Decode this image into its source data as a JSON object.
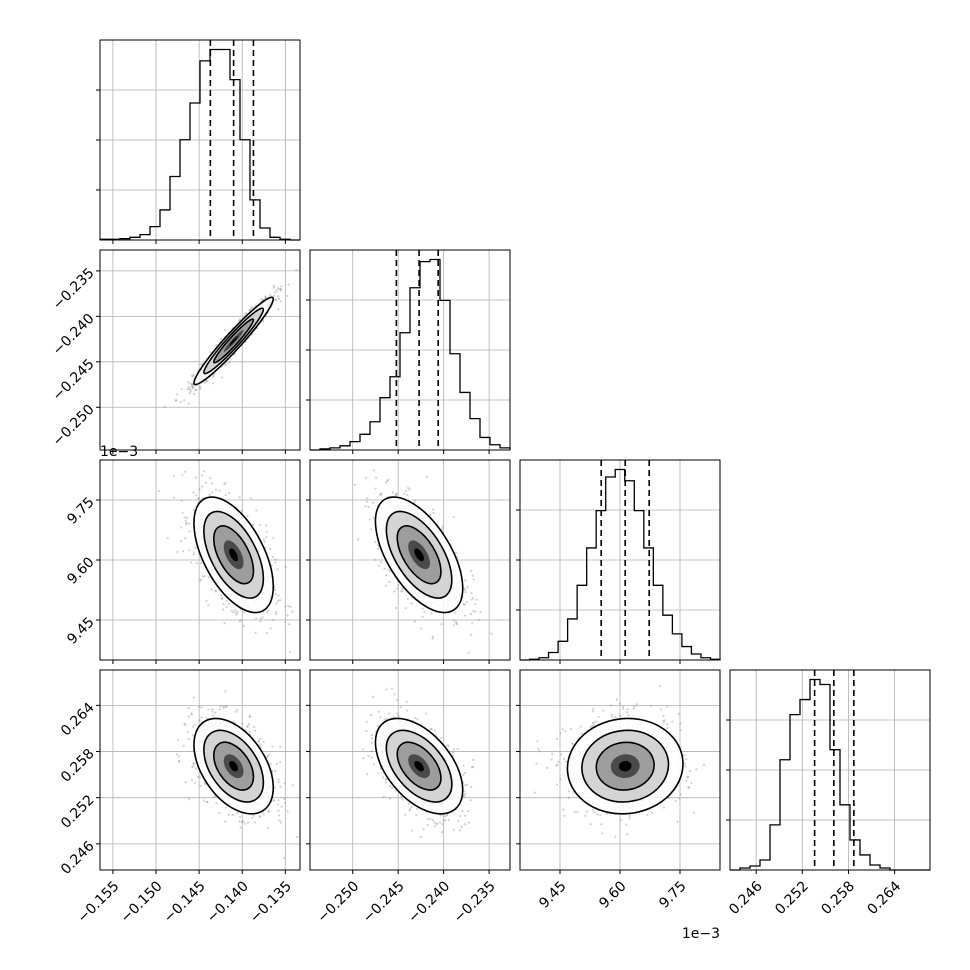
{
  "chart_data": {
    "type": "corner",
    "grid": true,
    "parameters": [
      {
        "ticks": [
          -0.155,
          -0.15,
          -0.145,
          -0.14,
          -0.135
        ],
        "tick_labels": [
          "−0.155",
          "−0.150",
          "−0.145",
          "−0.140",
          "−0.135"
        ],
        "range": [
          -0.1565,
          -0.1333
        ],
        "quantiles": [
          -0.1437,
          -0.141,
          -0.1387
        ],
        "offset_label": ""
      },
      {
        "ticks": [
          -0.25,
          -0.245,
          -0.24,
          -0.235
        ],
        "tick_labels": [
          "−0.250",
          "−0.245",
          "−0.240",
          "−0.235"
        ],
        "range": [
          -0.2547,
          -0.2327
        ],
        "quantiles": [
          -0.2452,
          -0.2427,
          -0.2406
        ],
        "offset_label": ""
      },
      {
        "ticks": [
          9.45,
          9.6,
          9.75
        ],
        "tick_labels": [
          "9.45",
          "9.60",
          "9.75"
        ],
        "range": [
          9.35,
          9.85
        ],
        "quantiles": [
          9.553,
          9.613,
          9.673
        ],
        "offset_label": "1e−3"
      },
      {
        "ticks": [
          0.246,
          0.252,
          0.258,
          0.264
        ],
        "tick_labels": [
          "0.246",
          "0.252",
          "0.258",
          "0.264"
        ],
        "range": [
          0.2426,
          0.2686
        ],
        "quantiles": [
          0.2536,
          0.2561,
          0.2587
        ],
        "offset_label": ""
      }
    ],
    "histograms": [
      {
        "bins": [
          -0.1565,
          -0.1333
        ],
        "counts": [
          1,
          1,
          2,
          4,
          8,
          20,
          45,
          95,
          150,
          205,
          268,
          285,
          285,
          240,
          150,
          60,
          18,
          4,
          1,
          0
        ]
      },
      {
        "bins": [
          -0.2547,
          -0.2327
        ],
        "counts": [
          0,
          1,
          2,
          4,
          8,
          15,
          27,
          50,
          70,
          112,
          155,
          180,
          182,
          143,
          92,
          55,
          30,
          12,
          5,
          2
        ]
      },
      {
        "bins": [
          9.35,
          9.85
        ],
        "counts": [
          0,
          1,
          3,
          10,
          25,
          55,
          100,
          150,
          200,
          245,
          255,
          240,
          200,
          150,
          100,
          60,
          35,
          18,
          8,
          3,
          1
        ]
      },
      {
        "bins": [
          0.2426,
          0.2686
        ],
        "counts": [
          0,
          2,
          4,
          10,
          45,
          110,
          155,
          170,
          190,
          185,
          120,
          65,
          30,
          15,
          5,
          2,
          0,
          0,
          0,
          0
        ]
      }
    ],
    "pairs": [
      {
        "x": 0,
        "y": 1,
        "mean": [
          -0.141,
          -0.2427
        ],
        "sd": [
          0.0023,
          0.0024
        ],
        "rho": 0.96
      },
      {
        "x": 0,
        "y": 2,
        "mean": [
          -0.141,
          9.613
        ],
        "sd": [
          0.0023,
          0.0722
        ],
        "rho": -0.55
      },
      {
        "x": 1,
        "y": 2,
        "mean": [
          -0.2427,
          9.613
        ],
        "sd": [
          0.0024,
          0.0722
        ],
        "rho": -0.58
      },
      {
        "x": 0,
        "y": 3,
        "mean": [
          -0.141,
          0.2561
        ],
        "sd": [
          0.0023,
          0.0031
        ],
        "rho": -0.45
      },
      {
        "x": 1,
        "y": 3,
        "mean": [
          -0.2427,
          0.2561
        ],
        "sd": [
          0.0024,
          0.0031
        ],
        "rho": -0.5
      },
      {
        "x": 2,
        "y": 3,
        "mean": [
          9.613,
          0.2561
        ],
        "sd": [
          0.0722,
          0.0031
        ],
        "rho": 0.05
      }
    ]
  }
}
